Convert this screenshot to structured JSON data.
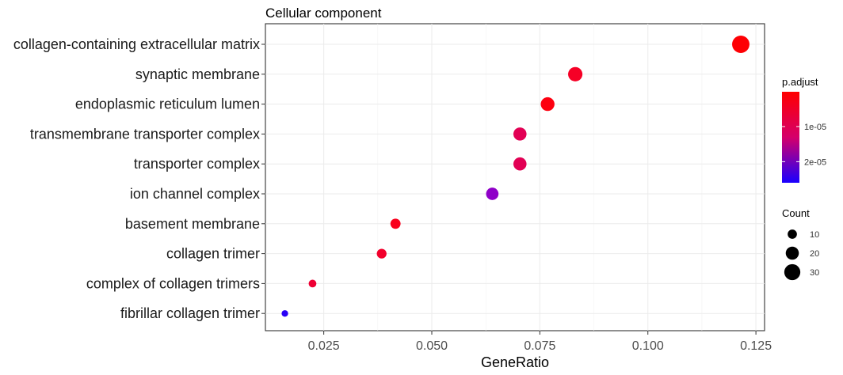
{
  "chart_data": {
    "type": "scatter",
    "title": "Cellular component",
    "xlabel": "GeneRatio",
    "ylabel": "",
    "xlim": [
      0.0115,
      0.127
    ],
    "xticks": [
      0.025,
      0.05,
      0.075,
      0.1,
      0.125
    ],
    "xtick_labels": [
      "0.025",
      "0.050",
      "0.075",
      "0.100",
      "0.125"
    ],
    "categories": [
      "collagen-containing extracellular matrix",
      "synaptic membrane",
      "endoplasmic reticulum lumen",
      "transmembrane transporter complex",
      "transporter complex",
      "ion channel complex",
      "basement membrane",
      "collagen trimer",
      "complex of collagen trimers",
      "fibrillar collagen trimer"
    ],
    "points": [
      {
        "category": "collagen-containing extracellular matrix",
        "x": 0.1215,
        "count": 35,
        "p_adjust": 2e-07,
        "color": "#fe0004"
      },
      {
        "category": "synaptic membrane",
        "x": 0.0832,
        "count": 24,
        "p_adjust": 3.5e-06,
        "color": "#f60026"
      },
      {
        "category": "endoplasmic reticulum lumen",
        "x": 0.0768,
        "count": 22,
        "p_adjust": 8e-07,
        "color": "#fd0010"
      },
      {
        "category": "transmembrane transporter complex",
        "x": 0.0704,
        "count": 20,
        "p_adjust": 7.5e-06,
        "color": "#e20054"
      },
      {
        "category": "transporter complex",
        "x": 0.0704,
        "count": 20,
        "p_adjust": 7.5e-06,
        "color": "#e20054"
      },
      {
        "category": "ion channel complex",
        "x": 0.064,
        "count": 18,
        "p_adjust": 1.9e-05,
        "color": "#8f00c8"
      },
      {
        "category": "basement membrane",
        "x": 0.0416,
        "count": 12,
        "p_adjust": 2.5e-06,
        "color": "#f9001c"
      },
      {
        "category": "collagen trimer",
        "x": 0.0384,
        "count": 11,
        "p_adjust": 4.5e-06,
        "color": "#f2002c"
      },
      {
        "category": "complex of collagen trimers",
        "x": 0.0224,
        "count": 7,
        "p_adjust": 5.5e-06,
        "color": "#ee0034"
      },
      {
        "category": "fibrillar collagen trimer",
        "x": 0.016,
        "count": 5,
        "p_adjust": 2.6e-05,
        "color": "#2800f6"
      }
    ],
    "grid": true,
    "legend_placement": "right",
    "color_legend": {
      "title": "p.adjust",
      "ticks": [
        {
          "label": "1e-05",
          "value": 1e-05
        },
        {
          "label": "2e-05",
          "value": 2e-05
        }
      ],
      "range": [
        1e-07,
        2.6e-05
      ],
      "color_low": "#ff0000",
      "color_high": "#1a00ff"
    },
    "size_legend": {
      "title": "Count",
      "entries": [
        {
          "label": "10",
          "value": 10
        },
        {
          "label": "20",
          "value": 20
        },
        {
          "label": "30",
          "value": 30
        }
      ]
    }
  }
}
